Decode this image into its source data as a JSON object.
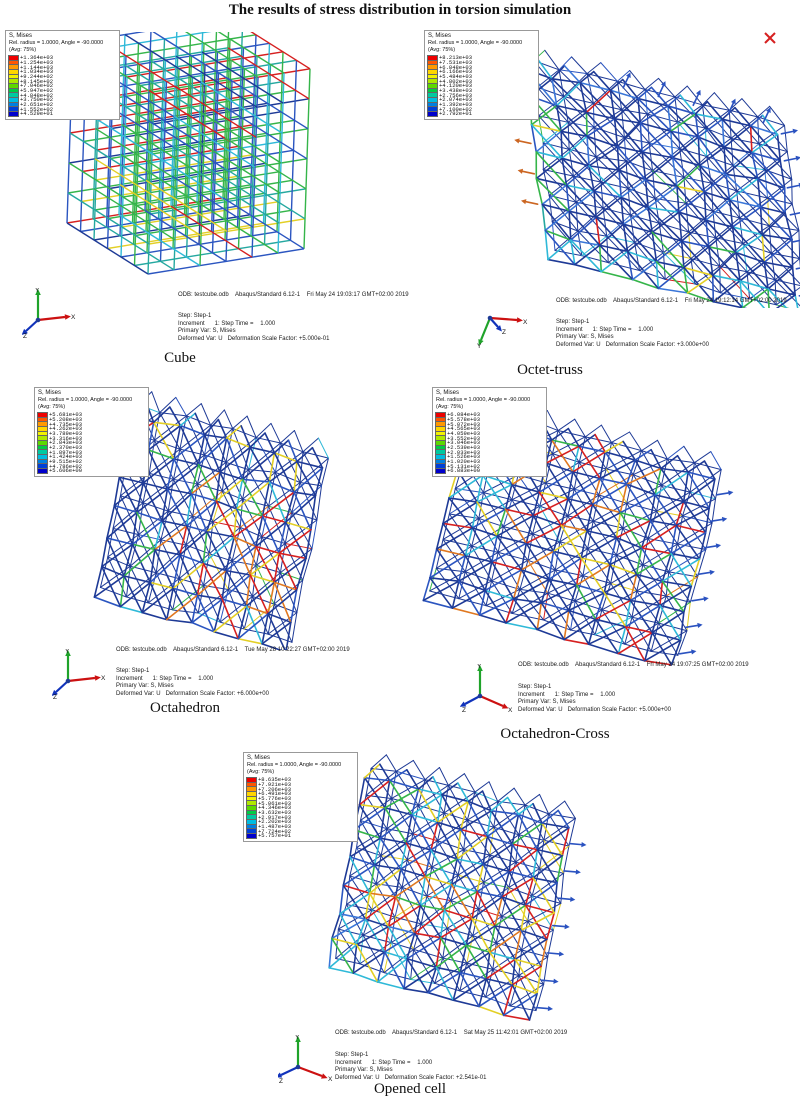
{
  "title": "The results of stress distribution in torsion simulation",
  "legend_colors": [
    "#ee0000",
    "#ff5500",
    "#ff9900",
    "#ffd500",
    "#f2f200",
    "#b0e800",
    "#5cd800",
    "#00cc44",
    "#00c9a0",
    "#00bce0",
    "#0080e0",
    "#0040d8",
    "#0000cc"
  ],
  "triad_labels": {
    "x": "X",
    "y": "Y",
    "z": "Z"
  },
  "panels": [
    {
      "id": "cube",
      "label": "Cube",
      "legend": {
        "field": "S, Mises",
        "subtitle": "Rel. radius = 1.0000, Angle = -90.0000",
        "avg": "(Avg: 75%)",
        "values": [
          "+1.364e+03",
          "+1.254e+03",
          "+1.144e+03",
          "+1.034e+03",
          "+9.244e+02",
          "+8.145e+02",
          "+7.046e+02",
          "+5.947e+02",
          "+4.848e+02",
          "+3.750e+02",
          "+2.651e+02",
          "+1.552e+02",
          "+4.529e+01"
        ]
      },
      "odb_line": "ODB: testcube.odb    Abaqus/Standard 6.12-1    Fri May 24 19:03:17 GMT+02:00 2019",
      "step_lines": [
        "Step: Step-1",
        "Increment      1: Step Time =    1.000",
        "Primary Var: S, Mises",
        "Deformed Var: U   Deformation Scale Factor: +5.000e-01"
      ]
    },
    {
      "id": "octet",
      "label": "Octet-truss",
      "legend": {
        "field": "S, Mises",
        "subtitle": "Rel. radius = 1.0000, Angle = -90.0000",
        "avg": "(Avg: 75%)",
        "values": [
          "+8.213e+03",
          "+7.531e+03",
          "+6.848e+03",
          "+6.166e+03",
          "+5.484e+03",
          "+4.802e+03",
          "+4.120e+03",
          "+3.438e+03",
          "+2.756e+03",
          "+2.074e+03",
          "+1.392e+03",
          "+7.100e+02",
          "+2.792e+01"
        ]
      },
      "odb_line": "ODB: testcube.odb    Abaqus/Standard 6.12-1    Fri May 24 19:12:14 GMT+02:00 2019",
      "step_lines": [
        "Step: Step-1",
        "Increment      1: Step Time =    1.000",
        "Primary Var: S, Mises",
        "Deformed Var: U   Deformation Scale Factor: +3.000e+00"
      ]
    },
    {
      "id": "octahedron",
      "label": "Octahedron",
      "legend": {
        "field": "S, Mises",
        "subtitle": "Rel. radius = 1.0000, Angle = -90.0000",
        "avg": "(Avg: 75%)",
        "values": [
          "+5.681e+03",
          "+5.208e+03",
          "+4.735e+03",
          "+4.262e+03",
          "+3.789e+03",
          "+3.316e+03",
          "+2.843e+03",
          "+2.370e+03",
          "+1.897e+03",
          "+1.424e+03",
          "+9.515e+02",
          "+4.786e+02",
          "+5.606e+00"
        ]
      },
      "odb_line": "ODB: testcube.odb    Abaqus/Standard 6.12-1    Tue May 28 10:22:27 GMT+02:00 2019",
      "step_lines": [
        "Step: Step-1",
        "Increment      1: Step Time =    1.000",
        "Primary Var: S, Mises",
        "Deformed Var: U   Deformation Scale Factor: +6.000e+00"
      ]
    },
    {
      "id": "octahedron-cross",
      "label": "Octahedron-Cross",
      "legend": {
        "field": "S, Mises",
        "subtitle": "Rel. radius = 1.0000, Angle = -90.0000",
        "avg": "(Avg: 75%)",
        "values": [
          "+6.084e+03",
          "+5.578e+03",
          "+5.072e+03",
          "+4.565e+03",
          "+4.059e+03",
          "+3.552e+03",
          "+3.046e+03",
          "+2.539e+03",
          "+2.033e+03",
          "+1.526e+03",
          "+1.020e+03",
          "+5.131e+02",
          "+6.883e+00"
        ]
      },
      "odb_line": "ODB: testcube.odb    Abaqus/Standard 6.12-1    Fri May 24 19:07:25 GMT+02:00 2019",
      "step_lines": [
        "Step: Step-1",
        "Increment      1: Step Time =    1.000",
        "Primary Var: S, Mises",
        "Deformed Var: U   Deformation Scale Factor: +5.000e+00"
      ]
    },
    {
      "id": "opened-cell",
      "label": "Opened cell",
      "legend": {
        "field": "S, Mises",
        "subtitle": "Rel. radius = 1.0000, Angle = -90.0000",
        "avg": "(Avg: 75%)",
        "values": [
          "+8.635e+03",
          "+7.921e+03",
          "+7.206e+03",
          "+6.491e+03",
          "+5.776e+03",
          "+5.061e+03",
          "+4.346e+03",
          "+3.632e+03",
          "+2.917e+03",
          "+2.202e+03",
          "+1.487e+03",
          "+7.724e+02",
          "+5.757e+01"
        ]
      },
      "odb_line": "ODB: testcube.odb    Abaqus/Standard 6.12-1    Sat May 25 11:42:01 GMT+02:00 2019",
      "step_lines": [
        "Step: Step-1",
        "Increment      1: Step Time =    1.000",
        "Primary Var: S, Mises",
        "Deformed Var: U   Deformation Scale Factor: +2.541e-01"
      ]
    }
  ]
}
